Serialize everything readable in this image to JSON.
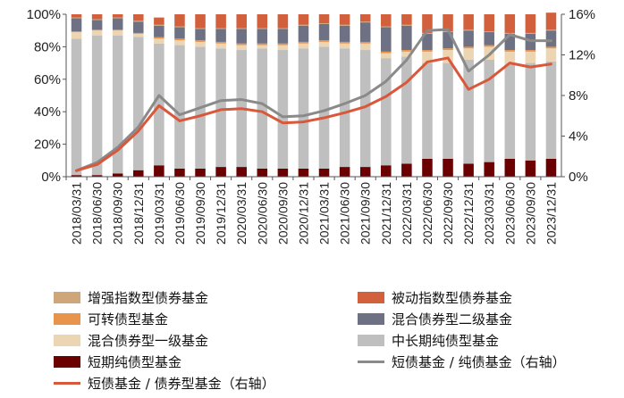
{
  "chart_data": {
    "type": "bar",
    "subtype": "stacked-bar-with-lines",
    "categories": [
      "2018/03/31",
      "2018/06/30",
      "2018/09/30",
      "2018/12/31",
      "2019/03/31",
      "2019/06/30",
      "2019/09/30",
      "2019/12/31",
      "2020/03/31",
      "2020/06/30",
      "2020/09/30",
      "2020/12/31",
      "2021/03/31",
      "2021/06/30",
      "2021/09/30",
      "2021/12/31",
      "2022/03/31",
      "2022/06/30",
      "2022/09/30",
      "2022/12/31",
      "2023/03/31",
      "2023/06/30",
      "2023/09/30",
      "2023/12/31"
    ],
    "left_axis": {
      "ylim": [
        0,
        100
      ],
      "ticks": [
        "0%",
        "20%",
        "40%",
        "60%",
        "80%",
        "100%"
      ]
    },
    "right_axis": {
      "ylim": [
        0,
        16
      ],
      "ticks": [
        "0%",
        "4%",
        "8%",
        "12%",
        "16%"
      ]
    },
    "series": [
      {
        "name": "短期纯债型基金",
        "color": "#6b0000",
        "axis": "left",
        "values": [
          1,
          1,
          2,
          4,
          7,
          5,
          5,
          6,
          6,
          5,
          5,
          5,
          5,
          6,
          6,
          7,
          8,
          11,
          11,
          8,
          9,
          11,
          10,
          11
        ]
      },
      {
        "name": "中长期纯债型基金",
        "color": "#bfbfbf",
        "axis": "left",
        "values": [
          84,
          86,
          85,
          82,
          75,
          76,
          75,
          73,
          72,
          74,
          73,
          74,
          75,
          73,
          72,
          66,
          66,
          59,
          59,
          64,
          63,
          58,
          60,
          60
        ]
      },
      {
        "name": "混合债券型一级基金",
        "color": "#ecd5b3",
        "axis": "left",
        "values": [
          4,
          3,
          3,
          2,
          3,
          3,
          3,
          3,
          3,
          2,
          3,
          3,
          3,
          3,
          4,
          3,
          3,
          7,
          8,
          7,
          8,
          8,
          7,
          8
        ]
      },
      {
        "name": "可转债型基金",
        "color": "#e8944a",
        "axis": "left",
        "values": [
          0.5,
          0.5,
          0.5,
          0.5,
          1,
          1,
          1,
          1,
          1,
          1,
          1,
          1,
          1,
          1,
          1,
          1,
          1,
          1,
          1,
          1,
          1,
          1,
          1,
          1
        ]
      },
      {
        "name": "混合债券型二级基金",
        "color": "#6e7183",
        "axis": "left",
        "values": [
          8,
          6,
          7,
          7,
          7,
          7,
          7,
          8,
          9,
          9,
          9,
          10,
          10,
          10,
          12,
          15,
          15,
          10,
          10,
          10,
          8,
          10,
          10,
          10
        ]
      },
      {
        "name": "增强指数型债券基金",
        "color": "#cfa67a",
        "axis": "left",
        "values": [
          0.5,
          0.5,
          0.5,
          0.5,
          0.5,
          0.5,
          0.5,
          0.5,
          0.5,
          0.5,
          0.5,
          0.5,
          0.5,
          0.5,
          0.5,
          0.5,
          0.5,
          0.5,
          0.5,
          0.5,
          0.5,
          0.5,
          0.5,
          0.5
        ]
      },
      {
        "name": "被动指数型债券基金",
        "color": "#d2603d",
        "axis": "left",
        "values": [
          2,
          3,
          2,
          4,
          4.5,
          7.5,
          8.5,
          8.5,
          8.5,
          8.5,
          8.5,
          6.5,
          5.5,
          6.5,
          4.5,
          7.5,
          6.5,
          11.5,
          10.5,
          9.5,
          10.5,
          11.5,
          11.5,
          10.5
        ]
      },
      {
        "name": "短债基金 / 纯债基金（右轴）",
        "color": "#8a8a8a",
        "axis": "right",
        "type": "line",
        "values": [
          0.6,
          1.4,
          2.9,
          4.9,
          8.0,
          6.1,
          6.8,
          7.5,
          7.6,
          7.2,
          5.9,
          6.0,
          6.5,
          7.2,
          8.0,
          9.4,
          11.5,
          14.4,
          14.5,
          10.4,
          12.0,
          14.0,
          13.4,
          13.4
        ]
      },
      {
        "name": "短债基金 / 债券型基金（右轴）",
        "color": "#d9573a",
        "axis": "right",
        "type": "line",
        "values": [
          0.6,
          1.2,
          2.6,
          4.5,
          7.0,
          5.5,
          6.0,
          6.6,
          6.7,
          6.4,
          5.3,
          5.4,
          5.8,
          6.3,
          6.9,
          7.9,
          9.3,
          11.3,
          11.7,
          8.6,
          9.6,
          11.2,
          10.8,
          11.1
        ]
      }
    ],
    "legend": {
      "placement": "bottom",
      "order": [
        "增强指数型债券基金",
        "被动指数型债券基金",
        "可转债型基金",
        "混合债券型二级基金",
        "混合债券型一级基金",
        "中长期纯债型基金",
        "短期纯债型基金",
        "短债基金 / 纯债基金（右轴）",
        "短债基金 / 债券型基金（右轴）"
      ]
    }
  }
}
